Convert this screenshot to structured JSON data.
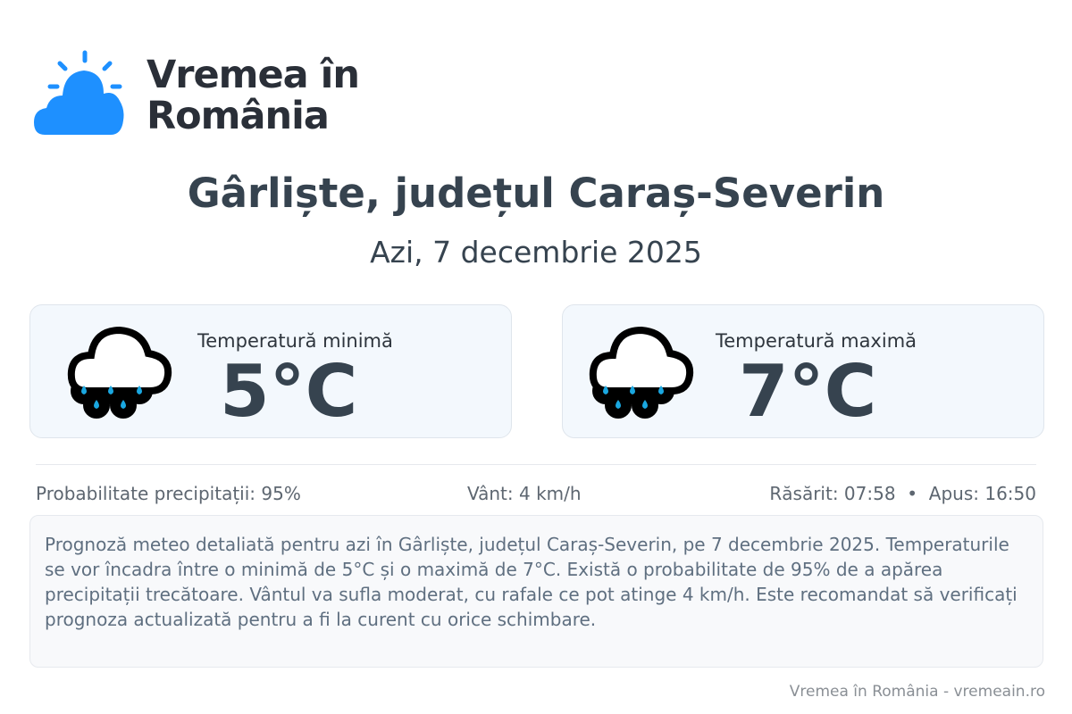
{
  "logo": {
    "line1": "Vremea în",
    "line2": "România",
    "color": "#1e90ff"
  },
  "title": "Gârliște, județul Caraș-Severin",
  "date": "Azi, 7 decembrie 2025",
  "cards": [
    {
      "label": "Temperatură minimă",
      "value": "5°C",
      "icon": "rain-cloud-icon"
    },
    {
      "label": "Temperatură maximă",
      "value": "7°C",
      "icon": "rain-cloud-icon"
    }
  ],
  "stats": {
    "precipitation": "Probabilitate precipitații: 95%",
    "wind": "Vânt: 4 km/h",
    "sun": "Răsărit: 07:58  •  Apus: 16:50"
  },
  "description": "Prognoză meteo detaliată pentru azi în Gârliște, județul Caraș-Severin, pe 7 decembrie 2025. Temperaturile se vor încadra între o minimă de 5°C și o maximă de 7°C. Există o probabilitate de 95% de a apărea precipitații trecătoare. Vântul va sufla moderat, cu rafale ce pot atinge 4 km/h. Este recomandat să verificați prognoza actualizată pentru a fi la curent cu orice schimbare.",
  "footer": "Vremea în România - vremeain.ro"
}
